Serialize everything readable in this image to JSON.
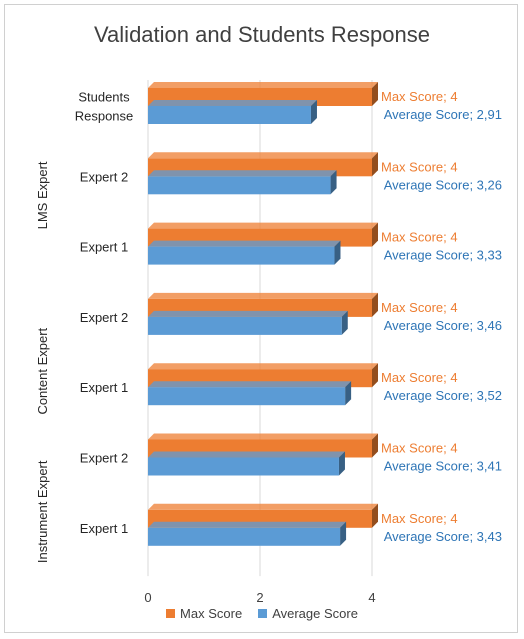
{
  "chart_data": {
    "type": "bar",
    "orientation": "horizontal",
    "style": "3d-clustered",
    "title": "Validation and Students Response",
    "xlabel": "",
    "ylabel": "",
    "xlim": [
      0,
      4
    ],
    "x_ticks": [
      "0",
      "2",
      "4"
    ],
    "grid": true,
    "legend_position": "bottom",
    "categories": [
      {
        "label": "Students Response",
        "lines": [
          "Students",
          "Response"
        ],
        "group": "LMS Expert"
      },
      {
        "label": "Expert 2",
        "lines": [
          "Expert 2"
        ],
        "group": "LMS Expert"
      },
      {
        "label": "Expert 1",
        "lines": [
          "Expert 1"
        ],
        "group": "LMS Expert"
      },
      {
        "label": "Expert 2",
        "lines": [
          "Expert 2"
        ],
        "group": "Content Expert"
      },
      {
        "label": "Expert 1",
        "lines": [
          "Expert 1"
        ],
        "group": "Content Expert"
      },
      {
        "label": "Expert 2",
        "lines": [
          "Expert 2"
        ],
        "group": "Instrument Expert"
      },
      {
        "label": "Expert 1",
        "lines": [
          "Expert 1"
        ],
        "group": "Instrument Expert"
      }
    ],
    "groups": [
      "LMS Expert",
      "Content Expert",
      "Instrument Expert"
    ],
    "series": [
      {
        "name": "Max Score",
        "color": "#ED7D31",
        "values": [
          4,
          4,
          4,
          4,
          4,
          4,
          4
        ],
        "labels": [
          "Max Score; 4",
          "Max Score; 4",
          "Max Score; 4",
          "Max Score; 4",
          "Max Score; 4",
          "Max Score; 4",
          "Max Score; 4"
        ]
      },
      {
        "name": "Average Score",
        "color": "#5B9BD5",
        "values": [
          2.91,
          3.26,
          3.33,
          3.46,
          3.52,
          3.41,
          3.43
        ],
        "labels": [
          "Average Score; 2,91",
          "Average Score; 3,26",
          "Average Score; 3,33",
          "Average Score; 3,46",
          "Average Score; 3,52",
          "Average Score; 3,41",
          "Average Score; 3,43"
        ]
      }
    ],
    "label_colors": {
      "Max Score": "#ED7D31",
      "Average Score": "#2E75B6"
    }
  }
}
